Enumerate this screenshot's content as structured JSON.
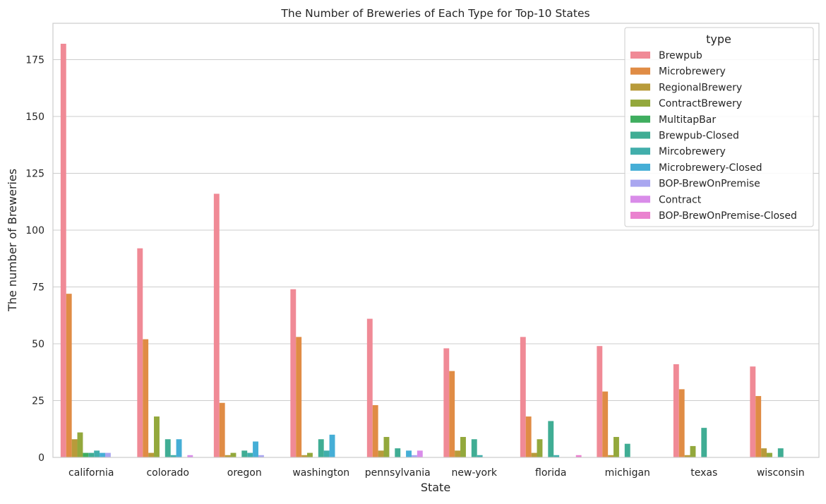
{
  "chart_data": {
    "type": "bar",
    "title": "The Number of Breweries of Each Type for Top-10 States",
    "xlabel": "State",
    "ylabel": "The number of Breweries",
    "categories": [
      "california",
      "colorado",
      "oregon",
      "washington",
      "pennsylvania",
      "new-york",
      "florida",
      "michigan",
      "texas",
      "wisconsin"
    ],
    "yticks": [
      0,
      25,
      50,
      75,
      100,
      125,
      150,
      175
    ],
    "ylim": [
      0,
      191
    ],
    "grid": true,
    "legend": {
      "title": "type",
      "placement": "top-right"
    },
    "series": [
      {
        "name": "Brewpub",
        "color": "#f08a96",
        "values": [
          182,
          92,
          116,
          74,
          61,
          48,
          53,
          49,
          41,
          40
        ]
      },
      {
        "name": "Microbrewery",
        "color": "#e08c45",
        "values": [
          72,
          52,
          24,
          53,
          23,
          38,
          18,
          29,
          30,
          27
        ]
      },
      {
        "name": "RegionalBrewery",
        "color": "#b89b3a",
        "values": [
          8,
          2,
          1,
          1,
          3,
          3,
          2,
          1,
          1,
          4
        ]
      },
      {
        "name": "ContractBrewery",
        "color": "#93a83c",
        "values": [
          11,
          18,
          2,
          2,
          9,
          9,
          8,
          9,
          5,
          2
        ]
      },
      {
        "name": "MultitapBar",
        "color": "#3fae5f",
        "values": [
          2,
          0,
          0,
          0,
          0,
          0,
          0,
          0,
          0,
          0
        ]
      },
      {
        "name": "Brewpub-Closed",
        "color": "#40ad94",
        "values": [
          2,
          8,
          3,
          8,
          4,
          8,
          16,
          6,
          13,
          4
        ]
      },
      {
        "name": "Mircobrewery",
        "color": "#41aeab",
        "values": [
          3,
          1,
          2,
          3,
          0,
          1,
          1,
          0,
          0,
          0
        ]
      },
      {
        "name": "Microbrewery-Closed",
        "color": "#45aed6",
        "values": [
          2,
          8,
          7,
          10,
          3,
          0,
          0,
          0,
          0,
          0
        ]
      },
      {
        "name": "BOP-BrewOnPremise",
        "color": "#a9a6f0",
        "values": [
          2,
          0,
          1,
          0,
          1,
          0,
          0,
          0,
          0,
          0
        ]
      },
      {
        "name": "Contract",
        "color": "#d98ce9",
        "values": [
          0,
          1,
          0,
          0,
          3,
          0,
          0,
          0,
          0,
          0
        ]
      },
      {
        "name": "BOP-BrewOnPremise-Closed",
        "color": "#ea82cf",
        "values": [
          0,
          0,
          0,
          0,
          0,
          0,
          1,
          0,
          0,
          0
        ]
      }
    ]
  }
}
